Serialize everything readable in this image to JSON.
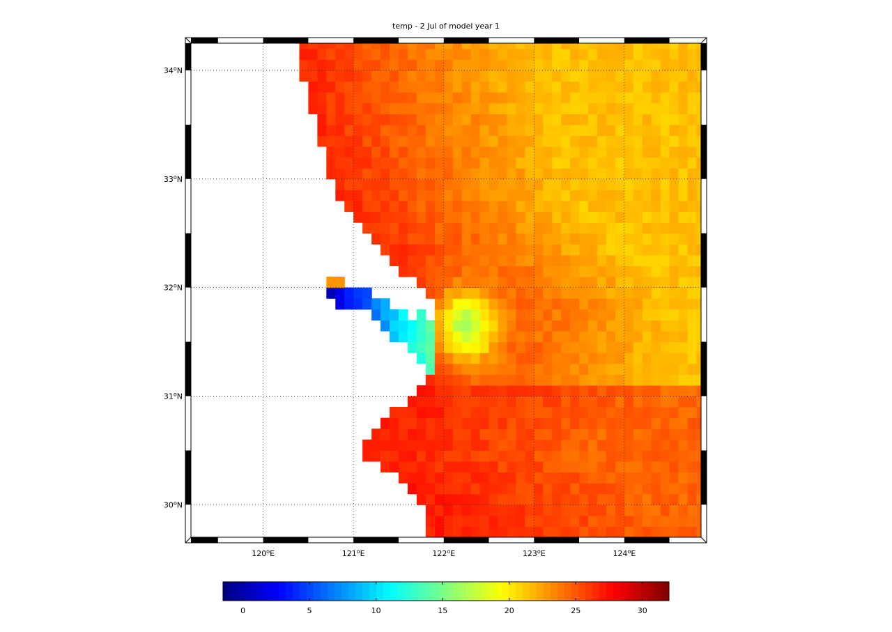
{
  "title": "temp - 2 Jul of model year 1",
  "map": {
    "lon_range": [
      119.2,
      124.85
    ],
    "lat_range": [
      29.7,
      34.25
    ],
    "lon_ticks": [
      {
        "value": 120,
        "deg": "120",
        "hemi": "E"
      },
      {
        "value": 121,
        "deg": "121",
        "hemi": "E"
      },
      {
        "value": 122,
        "deg": "122",
        "hemi": "E"
      },
      {
        "value": 123,
        "deg": "123",
        "hemi": "E"
      },
      {
        "value": 124,
        "deg": "124",
        "hemi": "E"
      }
    ],
    "lat_ticks": [
      {
        "value": 30,
        "deg": "30",
        "hemi": "N"
      },
      {
        "value": 31,
        "deg": "31",
        "hemi": "N"
      },
      {
        "value": 32,
        "deg": "32",
        "hemi": "N"
      },
      {
        "value": 33,
        "deg": "33",
        "hemi": "N"
      },
      {
        "value": 34,
        "deg": "34",
        "hemi": "N"
      }
    ],
    "grid": true,
    "frame": "black-white checkered border",
    "coastline_lon_by_lat": [
      [
        34.25,
        120.38
      ],
      [
        33.9,
        120.45
      ],
      [
        33.5,
        120.6
      ],
      [
        33.0,
        120.75
      ],
      [
        32.8,
        120.85
      ],
      [
        32.5,
        121.1
      ],
      [
        32.2,
        121.45
      ],
      [
        32.05,
        121.72
      ],
      [
        31.95,
        121.82
      ],
      [
        31.8,
        121.9
      ],
      [
        31.5,
        121.9
      ],
      [
        31.2,
        121.85
      ],
      [
        31.0,
        121.65
      ],
      [
        30.9,
        121.5
      ],
      [
        30.7,
        121.2
      ],
      [
        30.5,
        121.0
      ],
      [
        30.3,
        121.4
      ],
      [
        30.1,
        121.65
      ],
      [
        29.9,
        121.8
      ],
      [
        29.7,
        121.85
      ]
    ],
    "estuary_polygon": [
      [
        120.72,
        31.95
      ],
      [
        120.9,
        32.05
      ],
      [
        121.4,
        31.85
      ],
      [
        121.65,
        31.7
      ],
      [
        121.82,
        31.82
      ],
      [
        121.92,
        31.5
      ],
      [
        121.95,
        31.15
      ],
      [
        121.8,
        31.2
      ],
      [
        121.5,
        31.5
      ],
      [
        121.1,
        31.8
      ],
      [
        120.85,
        31.75
      ]
    ],
    "hotspot": [
      120.8,
      32.05
    ]
  },
  "field": {
    "name": "temp",
    "unit": "",
    "regimes": [
      {
        "region": "nearshore north",
        "value": 26.5
      },
      {
        "region": "offshore north",
        "value": 21.5
      },
      {
        "region": "plume front",
        "value": 17
      },
      {
        "region": "estuary channel",
        "value": 3
      },
      {
        "region": "nearshore south",
        "value": 27
      },
      {
        "region": "offshore south",
        "value": 24.5
      }
    ]
  },
  "colorbar": {
    "colormap": "jet",
    "range": [
      -1.5,
      32
    ],
    "ticks": [
      "0",
      "5",
      "10",
      "15",
      "20",
      "25",
      "30"
    ],
    "tick_values": [
      0,
      5,
      10,
      15,
      20,
      25,
      30
    ]
  }
}
